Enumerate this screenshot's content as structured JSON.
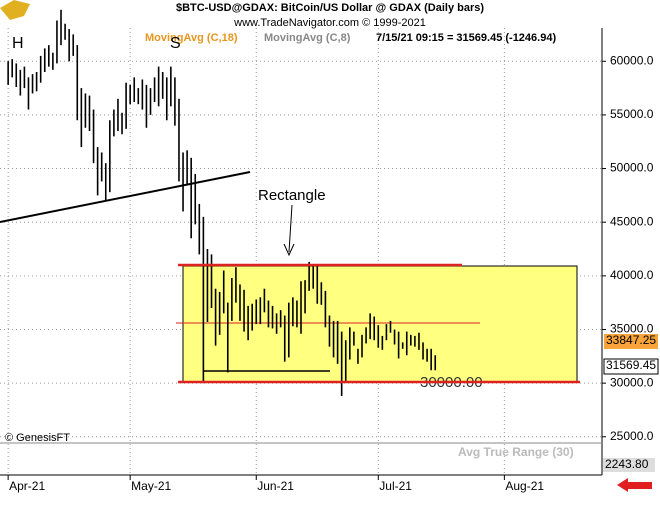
{
  "chart_data": {
    "type": "range-bars",
    "title": "$BTC-USD@GDAX:  BitCoin/US Dollar @ GDAX  (Daily bars)",
    "subtitle": "www.TradeNavigator.com © 1999-2021",
    "indicator_1": "MovingAvg (C,18)",
    "indicator_2": "MovingAvg (C,8)",
    "last_quote": "7/15/21 09:15 = 31569.45 (-1246.94)",
    "annotations": [
      "H",
      "S",
      "Rectangle",
      "30000.00"
    ],
    "price_tags": [
      "33847.25",
      "31569.45"
    ],
    "copyright": "© GenesisFT",
    "lower_panel_title": "Avg True Range (30)",
    "lower_panel_value": "2243.80",
    "color": "#000000",
    "xlim": [
      -2,
      146
    ],
    "xticks": [
      {
        "value": 0,
        "label": "Apr-21"
      },
      {
        "value": 30,
        "label": "May-21"
      },
      {
        "value": 61,
        "label": "Jun-21"
      },
      {
        "value": 91,
        "label": "Jul-21"
      },
      {
        "value": 122,
        "label": "Aug-21"
      }
    ],
    "ylim": [
      24700,
      63100
    ],
    "yticks": [
      {
        "value": 25000,
        "label": "25000.0"
      },
      {
        "value": 30000,
        "label": "30000.0"
      },
      {
        "value": 35000,
        "label": "35000.0"
      },
      {
        "value": 40000,
        "label": "40000.0"
      },
      {
        "value": 45000,
        "label": "45000.0"
      },
      {
        "value": 50000,
        "label": "50000.0"
      },
      {
        "value": 55000,
        "label": "55000.0"
      },
      {
        "value": 60000,
        "label": "60000.0"
      }
    ],
    "grid": true,
    "high": [
      60000,
      60200,
      59800,
      59200,
      59500,
      58500,
      58800,
      59000,
      60500,
      61200,
      61500,
      60800,
      63800,
      64800,
      63500,
      63000,
      62500,
      61500,
      57500,
      57000,
      56800,
      55500,
      52000,
      51500,
      50500,
      54500,
      55500,
      56500,
      55200,
      58000,
      57800,
      58500,
      57500,
      58300,
      57800,
      57500,
      58500,
      59500,
      59000,
      58500,
      59500,
      58500,
      56500,
      51500,
      51700,
      51000,
      49500,
      46700,
      45500,
      42500,
      42000,
      38800,
      38500,
      40500,
      37500,
      39800,
      40800,
      39200,
      38700,
      37200,
      37400,
      37800,
      38000,
      38800,
      37700,
      37200,
      36500,
      36800,
      36300,
      37500,
      38000,
      37700,
      39500,
      39600,
      41300,
      41000,
      40900,
      39400,
      38600,
      36300,
      35800,
      35800,
      34800,
      34000,
      35200,
      34800,
      33200,
      34500,
      35200,
      36500,
      36200,
      35400,
      34400,
      35500,
      35800,
      35000,
      34800,
      33800,
      34800,
      34500,
      34400,
      34700,
      33800,
      33200,
      33200,
      32600
    ],
    "low": [
      57800,
      58500,
      57600,
      56800,
      57500,
      55500,
      57000,
      57200,
      58000,
      59000,
      59500,
      59200,
      59800,
      61500,
      62000,
      60000,
      60500,
      54500,
      52000,
      53800,
      53500,
      50500,
      47500,
      48800,
      47000,
      47800,
      53000,
      53500,
      53200,
      53700,
      56000,
      56200,
      56000,
      55500,
      53800,
      55000,
      56200,
      55800,
      56500,
      54500,
      55800,
      54000,
      48800,
      46000,
      48500,
      43500,
      44800,
      42000,
      30000,
      35700,
      37000,
      33500,
      34500,
      36500,
      31000,
      35800,
      37500,
      35800,
      34800,
      34000,
      34900,
      35500,
      35500,
      36600,
      35200,
      35100,
      34600,
      35200,
      32000,
      32400,
      35300,
      35200,
      34600,
      36500,
      38600,
      38800,
      37400,
      37300,
      35200,
      33400,
      32400,
      31800,
      28800,
      30100,
      32200,
      33500,
      31800,
      32400,
      33700,
      34100,
      34000,
      33300,
      33100,
      34000,
      34700,
      33600,
      32300,
      33200,
      32600,
      33500,
      33400,
      33100,
      32200,
      32000,
      31200,
      31200
    ]
  }
}
